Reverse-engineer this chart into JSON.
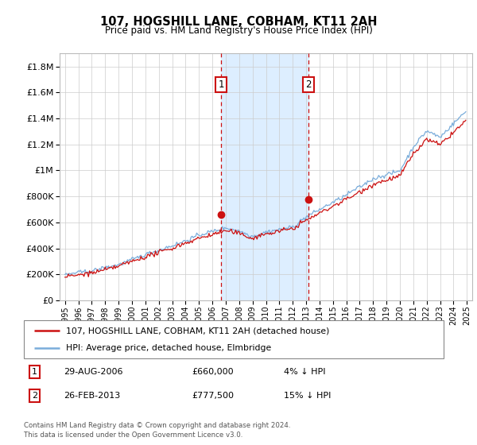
{
  "title": "107, HOGSHILL LANE, COBHAM, KT11 2AH",
  "subtitle": "Price paid vs. HM Land Registry's House Price Index (HPI)",
  "legend_line1": "107, HOGSHILL LANE, COBHAM, KT11 2AH (detached house)",
  "legend_line2": "HPI: Average price, detached house, Elmbridge",
  "annotation1_date": "29-AUG-2006",
  "annotation1_price": "£660,000",
  "annotation1_hpi": "4% ↓ HPI",
  "annotation1_year": 2006.66,
  "annotation1_value": 660000,
  "annotation2_date": "26-FEB-2013",
  "annotation2_price": "£777,500",
  "annotation2_hpi": "15% ↓ HPI",
  "annotation2_year": 2013.15,
  "annotation2_value": 777500,
  "footer_line1": "Contains HM Land Registry data © Crown copyright and database right 2024.",
  "footer_line2": "This data is licensed under the Open Government Licence v3.0.",
  "hpi_color": "#7aaddb",
  "price_color": "#cc1111",
  "annotation_box_color": "#cc1111",
  "shade_color": "#ddeeff",
  "ylim_max": 1900000,
  "bg_color": "#ffffff"
}
